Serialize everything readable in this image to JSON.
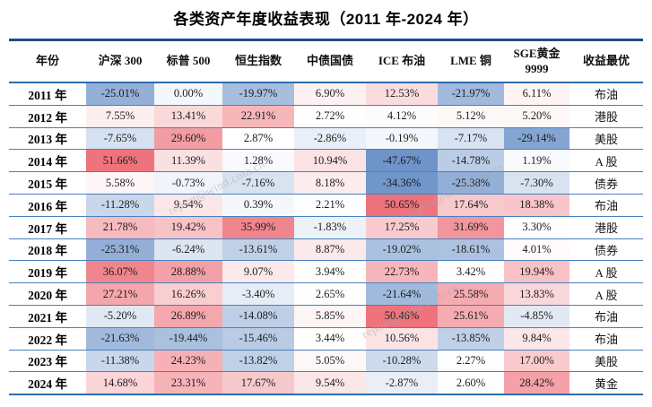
{
  "title": "各类资产年度收益表现（2011 年-2024 年）",
  "watermark": "report@wind.com.cn",
  "colors": {
    "border_dark": "#1F4E8C",
    "border_medium": "#2D6CAB",
    "row_line": "#4A80BC",
    "positive_heat": "#EE737C",
    "negative_heat": "#6E94C9",
    "text": "#1C1C1C"
  },
  "chart_data": {
    "type": "table",
    "title": "各类资产年度收益表现（2011 年-2024 年）",
    "columns": [
      [
        "年份"
      ],
      [
        "沪深 300"
      ],
      [
        "标普 500"
      ],
      [
        "恒生指数"
      ],
      [
        "中债国债"
      ],
      [
        "ICE 布油"
      ],
      [
        "LME 铜"
      ],
      [
        "SGE黄金",
        "9999"
      ],
      [
        "收益最优"
      ]
    ],
    "value_unit": "percent",
    "heatmap": {
      "positive_color": "#EE737C",
      "negative_color": "#6E94C9",
      "base_color": "#FFFFFF",
      "midpoint": 3,
      "span": 38
    },
    "rows": [
      {
        "year": "2011 年",
        "values": [
          -25.01,
          0.0,
          -19.97,
          6.9,
          12.53,
          -21.97,
          6.11
        ],
        "best": "布油"
      },
      {
        "year": "2012 年",
        "values": [
          7.55,
          13.41,
          22.91,
          2.72,
          4.12,
          5.12,
          5.2
        ],
        "best": "港股"
      },
      {
        "year": "2013 年",
        "values": [
          -7.65,
          29.6,
          2.87,
          -2.86,
          -0.19,
          -7.17,
          -29.14
        ],
        "best": "美股"
      },
      {
        "year": "2014 年",
        "values": [
          51.66,
          11.39,
          1.28,
          10.94,
          -47.67,
          -14.78,
          1.19
        ],
        "best": "A 股"
      },
      {
        "year": "2015 年",
        "values": [
          5.58,
          -0.73,
          -7.16,
          8.18,
          -34.36,
          -25.38,
          -7.3
        ],
        "best": "债券"
      },
      {
        "year": "2016 年",
        "values": [
          -11.28,
          9.54,
          0.39,
          2.21,
          50.65,
          17.64,
          18.38
        ],
        "best": "布油"
      },
      {
        "year": "2017 年",
        "values": [
          21.78,
          19.42,
          35.99,
          -1.83,
          17.25,
          31.69,
          3.3
        ],
        "best": "港股"
      },
      {
        "year": "2018 年",
        "values": [
          -25.31,
          -6.24,
          -13.61,
          8.87,
          -19.02,
          -18.61,
          4.01
        ],
        "best": "债券"
      },
      {
        "year": "2019 年",
        "values": [
          36.07,
          28.88,
          9.07,
          3.94,
          22.73,
          3.42,
          19.94
        ],
        "best": "A 股"
      },
      {
        "year": "2020 年",
        "values": [
          27.21,
          16.26,
          -3.4,
          2.65,
          -21.64,
          25.58,
          13.83
        ],
        "best": "A 股"
      },
      {
        "year": "2021 年",
        "values": [
          -5.2,
          26.89,
          -14.08,
          5.85,
          50.46,
          25.61,
          -4.85
        ],
        "best": "布油"
      },
      {
        "year": "2022 年",
        "values": [
          -21.63,
          -19.44,
          -15.46,
          3.44,
          10.56,
          -13.85,
          9.84
        ],
        "best": "布油"
      },
      {
        "year": "2023 年",
        "values": [
          -11.38,
          24.23,
          -13.82,
          5.05,
          -10.28,
          2.27,
          17.0
        ],
        "best": "美股"
      },
      {
        "year": "2024 年",
        "values": [
          14.68,
          23.31,
          17.67,
          9.54,
          -2.87,
          2.6,
          28.42
        ],
        "best": "黄金"
      }
    ]
  }
}
